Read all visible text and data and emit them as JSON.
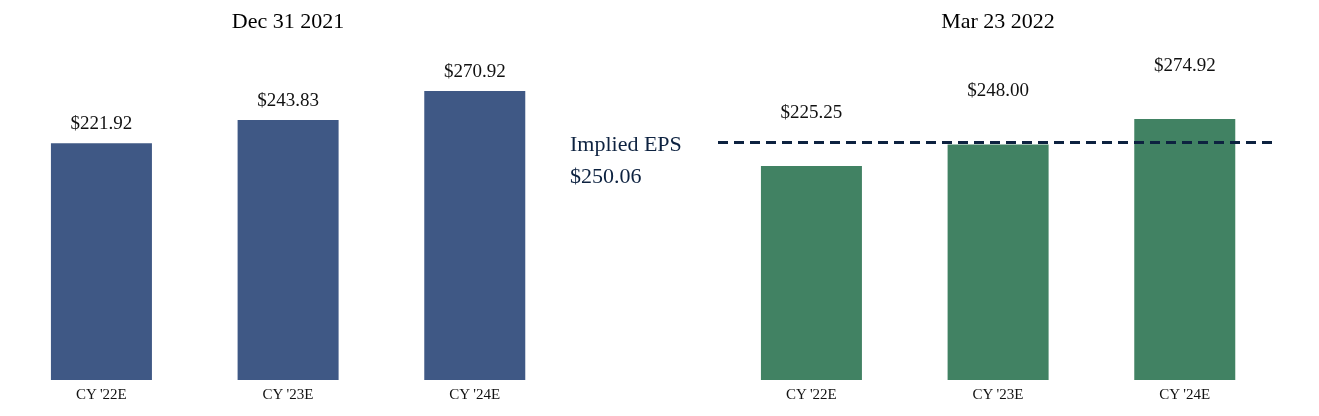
{
  "chart_data": [
    {
      "type": "bar",
      "title": "Dec 31 2021",
      "categories": [
        "CY '22E",
        "CY '23E",
        "CY '24E"
      ],
      "values": [
        221.92,
        243.83,
        270.92
      ],
      "value_labels": [
        "$221.92",
        "$243.83",
        "$270.92"
      ],
      "color": "#3f5885",
      "tick_labels": "x"
    },
    {
      "type": "bar",
      "title": "Mar 23 2022",
      "categories": [
        "CY '22E",
        "CY '23E",
        "CY '24E"
      ],
      "values": [
        225.25,
        248.0,
        274.92
      ],
      "value_labels": [
        "$225.25",
        "$248.00",
        "$274.92"
      ],
      "color": "#418263",
      "tick_labels": "x",
      "ref_lines": [
        {
          "axis": "y",
          "value": 250.06,
          "label": "Implied EPS $250.06",
          "color": "#0d2240",
          "line_style": "dashed"
        }
      ]
    }
  ]
}
